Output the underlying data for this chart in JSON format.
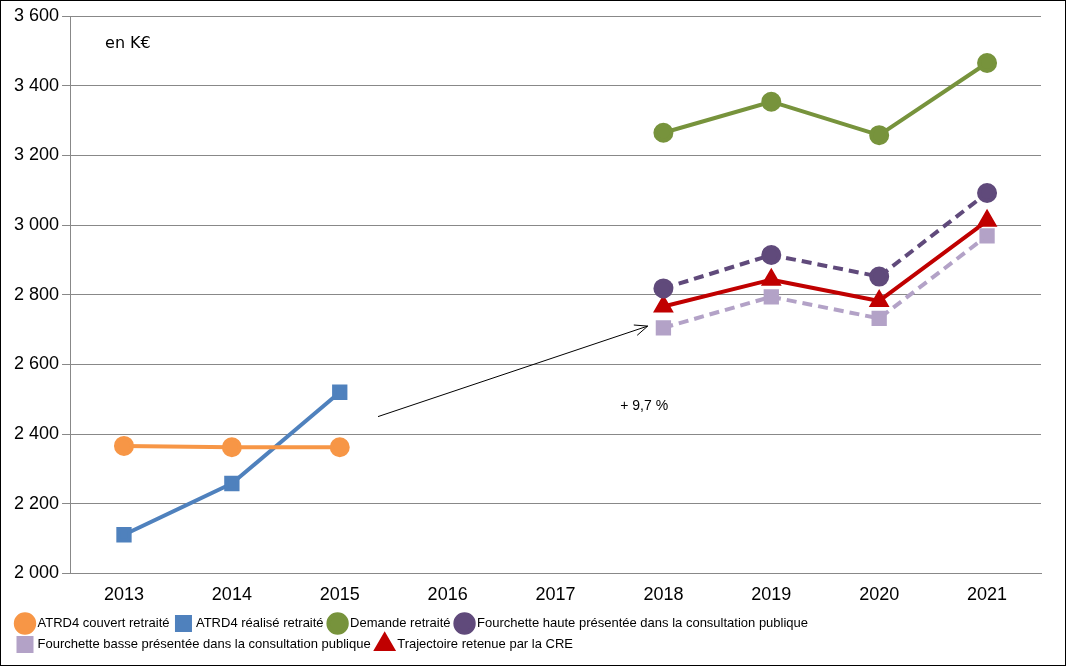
{
  "chart_data": {
    "type": "line",
    "categories": [
      "2013",
      "2014",
      "2015",
      "2016",
      "2017",
      "2018",
      "2019",
      "2020",
      "2021"
    ],
    "ylim": [
      2000,
      3600
    ],
    "yticks": [
      {
        "value": 2000,
        "label": "2 000"
      },
      {
        "value": 2200,
        "label": "2 200"
      },
      {
        "value": 2400,
        "label": "2 400"
      },
      {
        "value": 2600,
        "label": "2 600"
      },
      {
        "value": 2800,
        "label": "2 800"
      },
      {
        "value": 3000,
        "label": "3 000"
      },
      {
        "value": 3200,
        "label": "3 200"
      },
      {
        "value": 3400,
        "label": "3 400"
      },
      {
        "value": 3600,
        "label": "3 600"
      }
    ],
    "grid": "y",
    "legend": "bottom",
    "annotations": [
      "en K€",
      "+ 9,7 %"
    ],
    "series": [
      {
        "name": "ATRD4 couvert retraité",
        "color": "#f79646",
        "marker": "circle",
        "line_style": "solid",
        "values": [
          2366,
          2362,
          2362,
          null,
          null,
          null,
          null,
          null,
          null
        ]
      },
      {
        "name": "ATRD4 réalisé retraité",
        "color": "#4f81bd",
        "marker": "square",
        "line_style": "solid",
        "values": [
          2111,
          2258,
          2520,
          null,
          null,
          null,
          null,
          null,
          null
        ]
      },
      {
        "name": "Demande retraité",
        "color": "#77933c",
        "marker": "circle",
        "line_style": "solid",
        "values": [
          null,
          null,
          null,
          null,
          null,
          3265,
          3354,
          3258,
          3465
        ]
      },
      {
        "name": "Fourchette haute présentée dans la consultation publique",
        "color": "#604a7b",
        "marker": "circle",
        "line_style": "dashed",
        "values": [
          null,
          null,
          null,
          null,
          null,
          2818,
          2914,
          2852,
          3092
        ]
      },
      {
        "name": "Fourchette basse présentée dans la consultation publique",
        "color": "#b3a2c7",
        "marker": "square",
        "line_style": "dashed",
        "values": [
          null,
          null,
          null,
          null,
          null,
          2705,
          2794,
          2732,
          2969
        ]
      },
      {
        "name": "Trajectoire retenue par la CRE",
        "color": "#c00000",
        "marker": "triangle",
        "line_style": "solid",
        "values": [
          null,
          null,
          null,
          null,
          null,
          2766,
          2843,
          2782,
          3012
        ]
      }
    ]
  }
}
